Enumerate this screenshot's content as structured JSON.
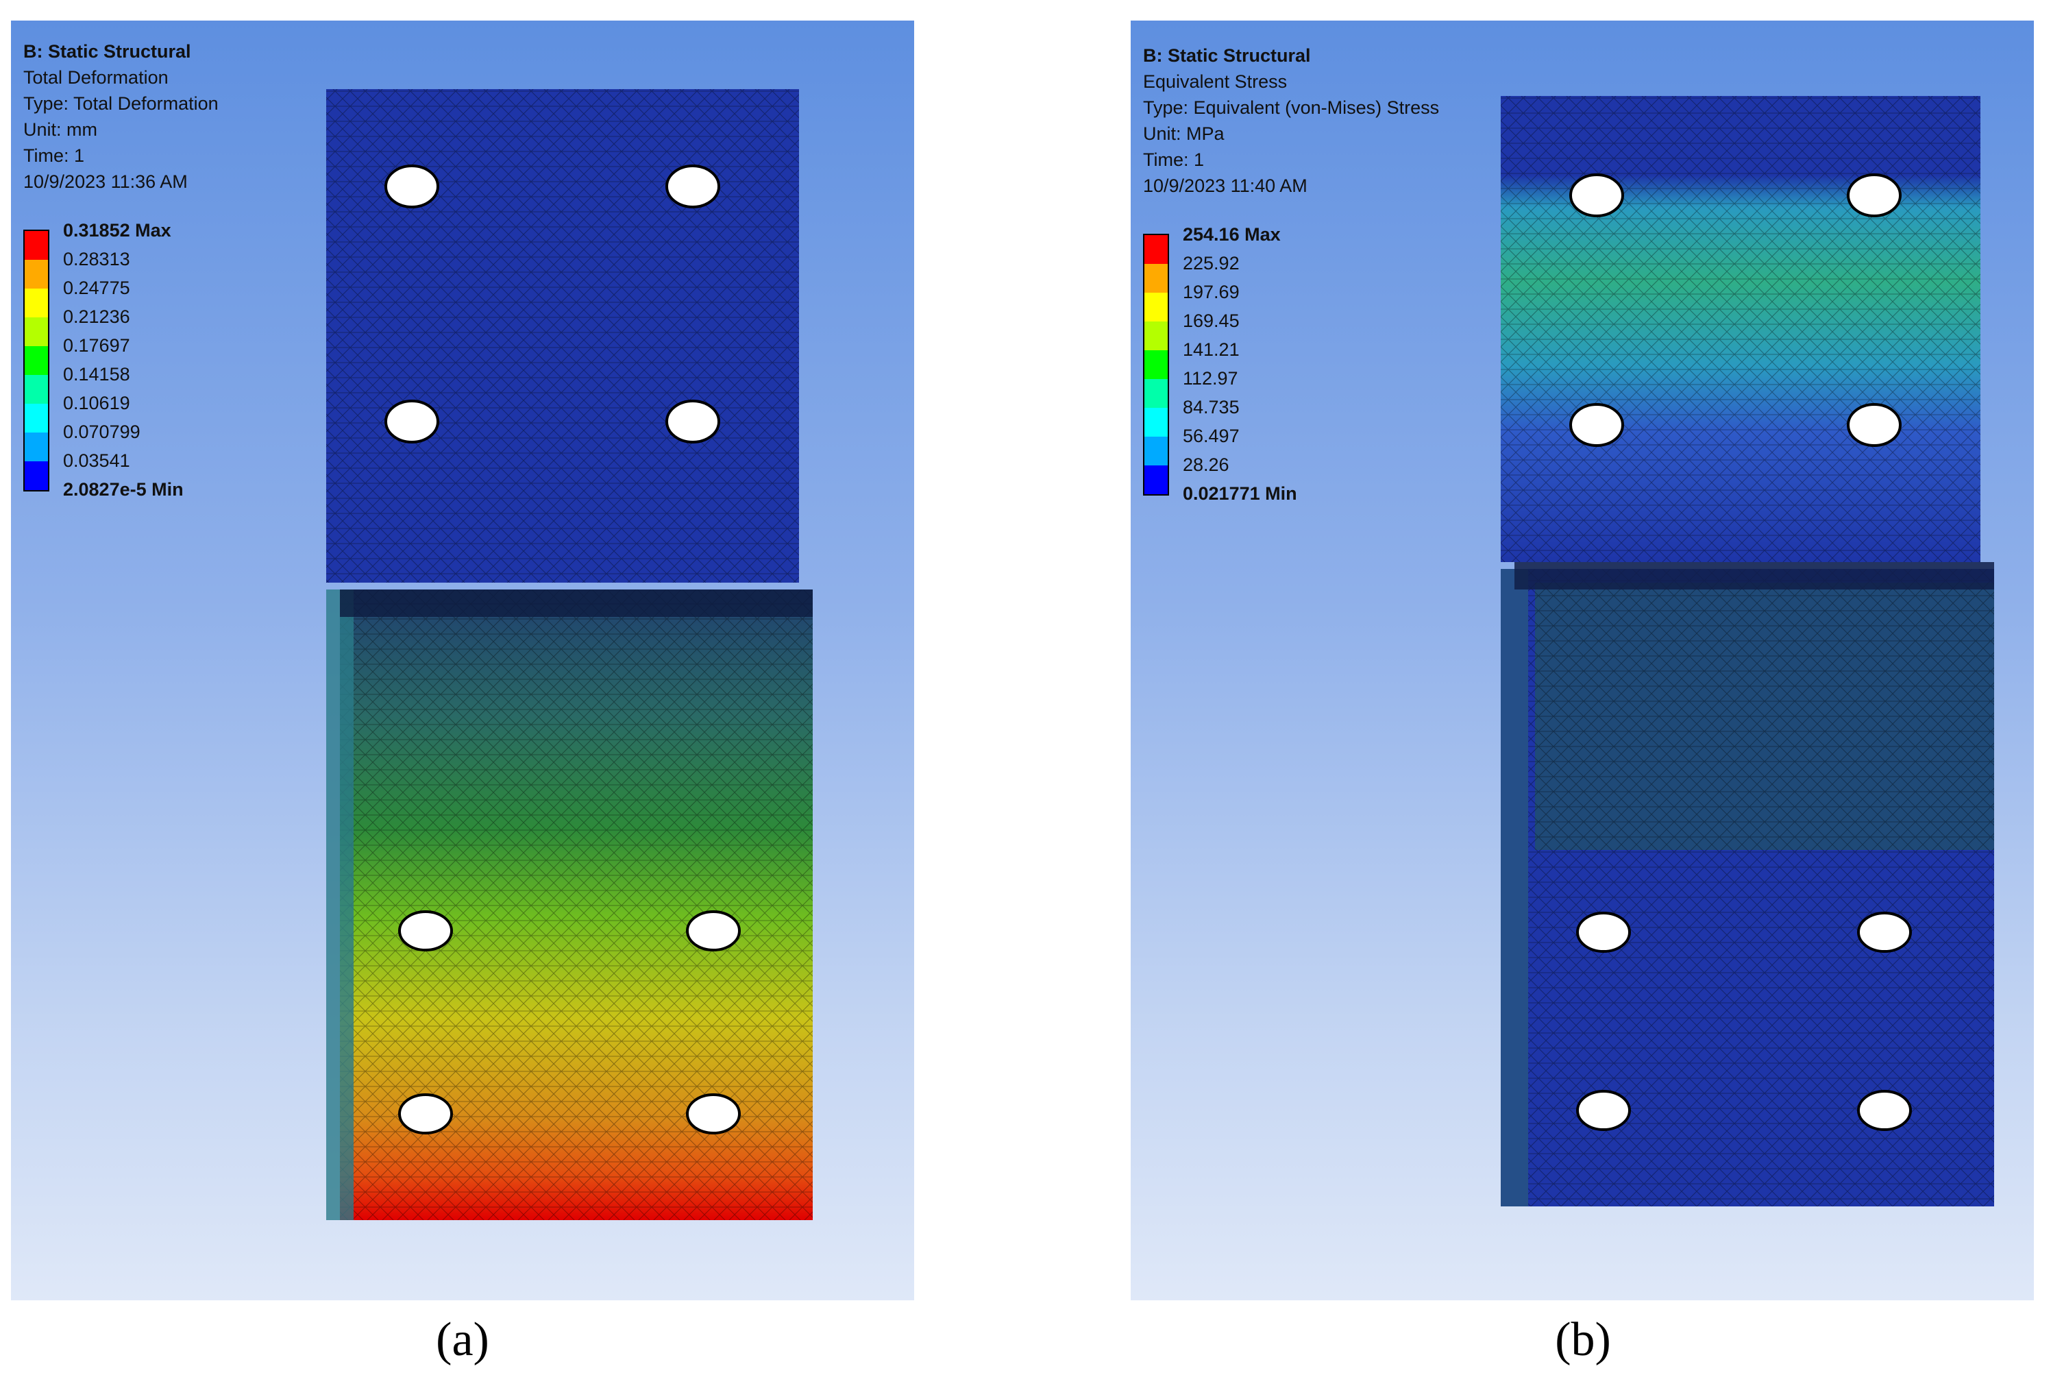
{
  "panels": [
    {
      "id": "a",
      "header": {
        "title": "B: Static Structural",
        "result": "Total Deformation",
        "type": "Type: Total Deformation",
        "unit": "Unit: mm",
        "time": "Time: 1",
        "date": "10/9/2023 11:36 AM"
      },
      "legend": {
        "max": "0.31852 Max",
        "ticks": [
          "0.28313",
          "0.24775",
          "0.21236",
          "0.17697",
          "0.14158",
          "0.10619",
          "0.070799",
          "0.03541"
        ],
        "min": "2.0827e-5 Min"
      },
      "caption": "(a)"
    },
    {
      "id": "b",
      "header": {
        "title": "B: Static Structural",
        "result": "Equivalent Stress",
        "type": "Type: Equivalent (von-Mises) Stress",
        "unit": "Unit: MPa",
        "time": "Time: 1",
        "date": "10/9/2023 11:40 AM"
      },
      "legend": {
        "max": "254.16 Max",
        "ticks": [
          "225.92",
          "197.69",
          "169.45",
          "141.21",
          "112.97",
          "84.735",
          "56.497",
          "28.26"
        ],
        "min": "0.021771 Min"
      },
      "caption": "(b)"
    }
  ],
  "legend_colors": [
    "#ff0000",
    "#ffaa00",
    "#ffff00",
    "#b4ff00",
    "#00ff00",
    "#00ffaa",
    "#00ffff",
    "#00aaff",
    "#0000ff"
  ]
}
